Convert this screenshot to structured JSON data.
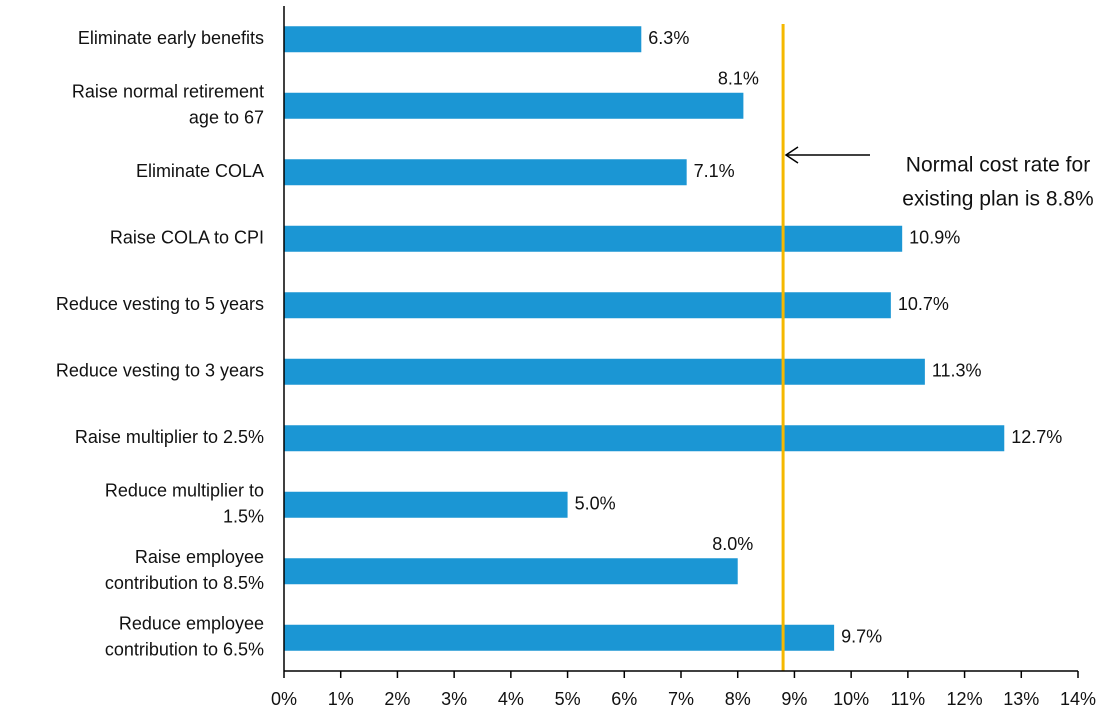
{
  "chart_data": {
    "type": "barh",
    "categories": [
      [
        "Eliminate early benefits"
      ],
      [
        "Raise normal retirement",
        "age to 67"
      ],
      [
        "Eliminate COLA"
      ],
      [
        "Raise COLA to CPI"
      ],
      [
        "Reduce vesting to 5 years"
      ],
      [
        "Reduce vesting to 3 years"
      ],
      [
        "Raise multiplier to 2.5%"
      ],
      [
        "Reduce multiplier to",
        "1.5%"
      ],
      [
        "Raise employee",
        "contribution to 8.5%"
      ],
      [
        "Reduce employee",
        "contribution to 6.5%"
      ]
    ],
    "values": [
      6.3,
      8.1,
      7.1,
      10.9,
      10.7,
      11.3,
      12.7,
      5.0,
      8.0,
      9.7
    ],
    "value_labels": [
      "6.3%",
      "8.1%",
      "7.1%",
      "10.9%",
      "10.7%",
      "11.3%",
      "12.7%",
      "5.0%",
      "8.0%",
      "9.7%"
    ],
    "color": "#1b96d4",
    "xlim": [
      0,
      14
    ],
    "xticks": [
      {
        "value": 0,
        "label": "0%"
      },
      {
        "value": 1,
        "label": "1%"
      },
      {
        "value": 2,
        "label": "2%"
      },
      {
        "value": 3,
        "label": "3%"
      },
      {
        "value": 4,
        "label": "4%"
      },
      {
        "value": 5,
        "label": "5%"
      },
      {
        "value": 6,
        "label": "6%"
      },
      {
        "value": 7,
        "label": "7%"
      },
      {
        "value": 8,
        "label": "8%"
      },
      {
        "value": 9,
        "label": "9%"
      },
      {
        "value": 10,
        "label": "10%"
      },
      {
        "value": 11,
        "label": "11%"
      },
      {
        "value": 12,
        "label": "12%"
      },
      {
        "value": 13,
        "label": "13%"
      },
      {
        "value": 14,
        "label": "14%"
      }
    ],
    "reference_line": {
      "value": 8.8,
      "color": "#f5b800"
    },
    "annotation": [
      "Normal cost rate for",
      "existing plan is 8.8%"
    ]
  }
}
